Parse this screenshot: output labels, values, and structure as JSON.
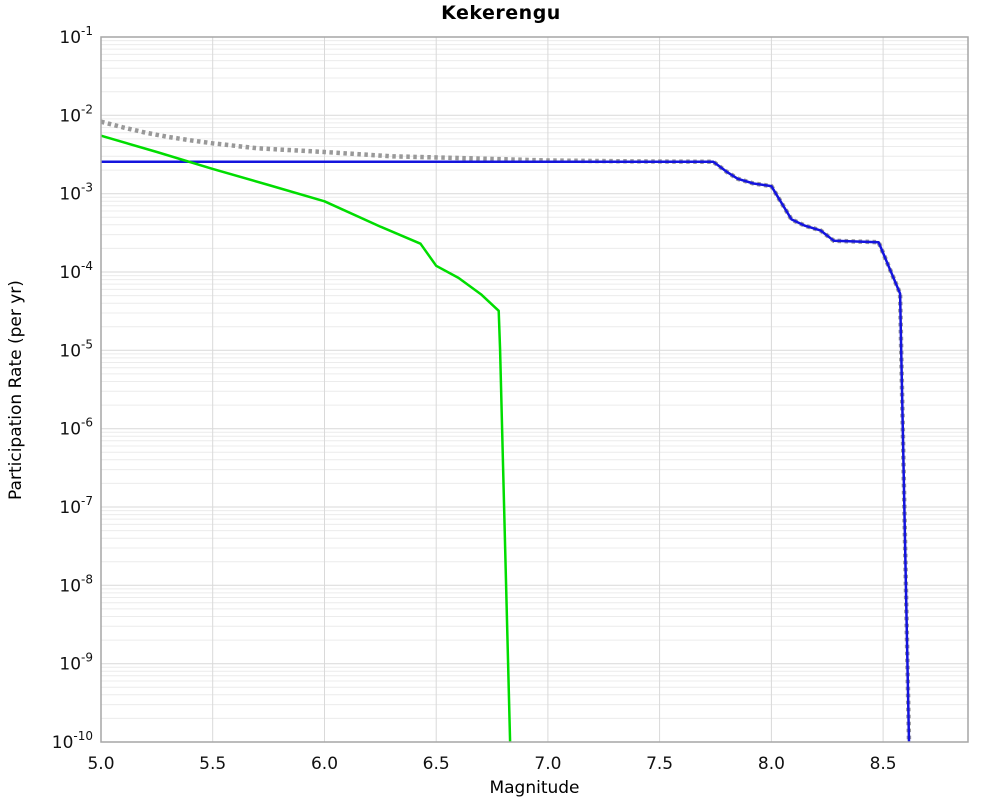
{
  "chart_data": {
    "type": "line",
    "title": "Kekerengu",
    "xlabel": "Magnitude",
    "ylabel": "Participation Rate (per yr)",
    "xlim": [
      5.0,
      8.88
    ],
    "ylim_log10": [
      -10,
      -1
    ],
    "x_ticks": [
      5.0,
      5.5,
      6.0,
      6.5,
      7.0,
      7.5,
      8.0,
      8.5
    ],
    "x_tick_labels": [
      "5.0",
      "5.5",
      "6.0",
      "6.5",
      "7.0",
      "7.5",
      "8.0",
      "8.5"
    ],
    "y_tick_base": "10",
    "y_tick_exponents": [
      "-1",
      "-2",
      "-3",
      "-4",
      "-5",
      "-6",
      "-7",
      "-8",
      "-9",
      "-10"
    ],
    "grid": true,
    "legend": "none",
    "axis_colors": {
      "border": "#a6a6a6",
      "major_grid": "#d9d9d9",
      "minor_grid": "#ececec",
      "tick_text": "#111111"
    },
    "series": [
      {
        "name": "gray-dotted",
        "style": "dotted",
        "color": "#999999",
        "width": 4.5,
        "points": [
          [
            5.0,
            0.0083
          ],
          [
            5.1,
            0.007
          ],
          [
            5.2,
            0.006
          ],
          [
            5.3,
            0.0053
          ],
          [
            5.4,
            0.0048
          ],
          [
            5.5,
            0.0044
          ],
          [
            5.7,
            0.0038
          ],
          [
            6.0,
            0.0034
          ],
          [
            6.3,
            0.003
          ],
          [
            6.6,
            0.00285
          ],
          [
            7.0,
            0.00265
          ],
          [
            7.4,
            0.00258
          ],
          [
            7.74,
            0.00255
          ],
          [
            7.8,
            0.0019
          ],
          [
            7.85,
            0.00155
          ],
          [
            7.92,
            0.00135
          ],
          [
            8.0,
            0.00125
          ],
          [
            8.03,
            0.0009
          ],
          [
            8.09,
            0.00047
          ],
          [
            8.15,
            0.00039
          ],
          [
            8.22,
            0.00034
          ],
          [
            8.28,
            0.00025
          ],
          [
            8.48,
            0.00024
          ],
          [
            8.576,
            5.3e-05
          ],
          [
            8.581,
            1e-05
          ],
          [
            8.588,
            1e-06
          ],
          [
            8.602,
            1e-08
          ],
          [
            8.616,
            1e-10
          ]
        ]
      },
      {
        "name": "blue-solid",
        "style": "solid",
        "color": "#1414dd",
        "width": 2.5,
        "points": [
          [
            5.0,
            0.00255
          ],
          [
            7.74,
            0.00255
          ],
          [
            7.8,
            0.0019
          ],
          [
            7.85,
            0.00155
          ],
          [
            7.92,
            0.00135
          ],
          [
            8.0,
            0.00125
          ],
          [
            8.03,
            0.0009
          ],
          [
            8.09,
            0.00047
          ],
          [
            8.15,
            0.00039
          ],
          [
            8.22,
            0.00034
          ],
          [
            8.28,
            0.00025
          ],
          [
            8.48,
            0.00024
          ],
          [
            8.576,
            5.3e-05
          ],
          [
            8.581,
            1e-05
          ],
          [
            8.588,
            1e-06
          ],
          [
            8.602,
            1e-08
          ],
          [
            8.616,
            1e-10
          ]
        ]
      },
      {
        "name": "green-solid",
        "style": "solid",
        "color": "#00dd00",
        "width": 2.5,
        "points": [
          [
            5.0,
            0.0055
          ],
          [
            5.25,
            0.0034
          ],
          [
            5.5,
            0.00207
          ],
          [
            5.75,
            0.00129
          ],
          [
            6.0,
            0.0008
          ],
          [
            6.25,
            0.00038
          ],
          [
            6.43,
            0.00023
          ],
          [
            6.5,
            0.00012
          ],
          [
            6.6,
            8.4e-05
          ],
          [
            6.7,
            5.2e-05
          ],
          [
            6.78,
            3.2e-05
          ],
          [
            6.786,
            1e-05
          ],
          [
            6.795,
            1e-06
          ],
          [
            6.813,
            1e-08
          ],
          [
            6.831,
            1e-10
          ]
        ]
      }
    ]
  }
}
